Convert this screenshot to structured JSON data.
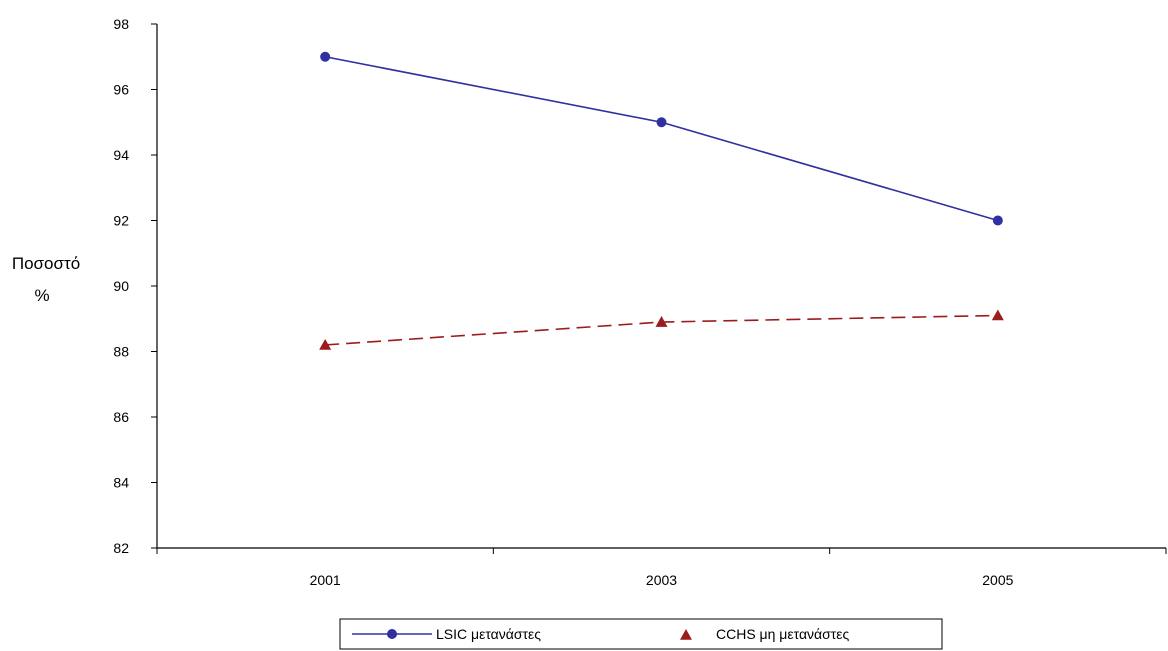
{
  "chart_data": {
    "type": "line",
    "categories": [
      "2001",
      "2003",
      "2005"
    ],
    "ylabel_lines": [
      "Ποσοστό",
      "%"
    ],
    "ylim": [
      82,
      98
    ],
    "yticks": [
      "82",
      "84",
      "86",
      "88",
      "90",
      "92",
      "94",
      "96",
      "98"
    ],
    "grid": false,
    "legend_position": "bottom",
    "series": [
      {
        "name": "LSIC μετανάστες",
        "values": [
          97,
          95,
          92
        ],
        "color": "#3030a0",
        "marker": "circle",
        "line": "solid"
      },
      {
        "name": "CCHS μη μετανάστες",
        "values": [
          88.2,
          88.9,
          89.1
        ],
        "color": "#9b1c1c",
        "marker": "triangle",
        "line": "dashed"
      }
    ]
  }
}
